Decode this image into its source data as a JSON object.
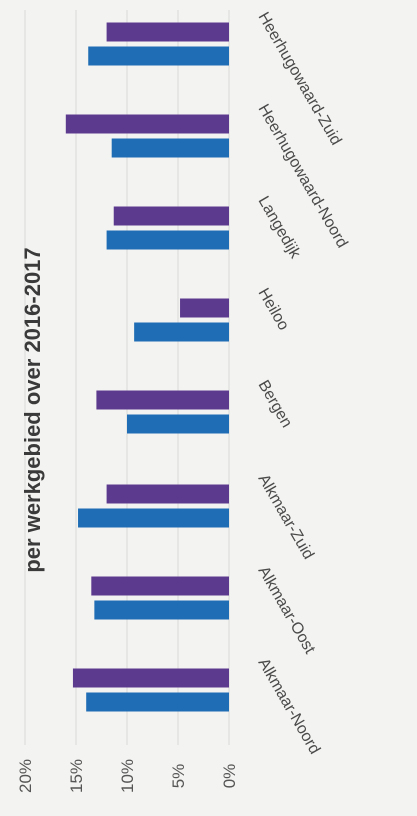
{
  "chart_data": {
    "type": "bar",
    "orientation": "horizontal",
    "title": "per werkgebied over 2016-2017",
    "categories": [
      "Heerhugowaard-Zuid",
      "Heerhugowaard-Noord",
      "Langedijk",
      "Heiloo",
      "Bergen",
      "Alkmaar-Zuid",
      "Alkmaar-Oost",
      "Alkmaar-Noord"
    ],
    "series": [
      {
        "color": "#5c3a8e",
        "values": [
          12.0,
          16.0,
          11.3,
          4.8,
          13.0,
          12.0,
          13.5,
          15.3
        ]
      },
      {
        "color": "#1f6db4",
        "values": [
          13.8,
          11.5,
          12.0,
          9.3,
          10.0,
          14.8,
          13.2,
          14.0
        ]
      }
    ],
    "value_axis": {
      "min": 0,
      "max": 20,
      "ticks": [
        "20%",
        "15%",
        "10%",
        "5%",
        "0%"
      ],
      "tick_values": [
        20,
        15,
        10,
        5,
        0
      ]
    },
    "grid": true,
    "legend": "none",
    "xlabel": "",
    "ylabel": ""
  }
}
